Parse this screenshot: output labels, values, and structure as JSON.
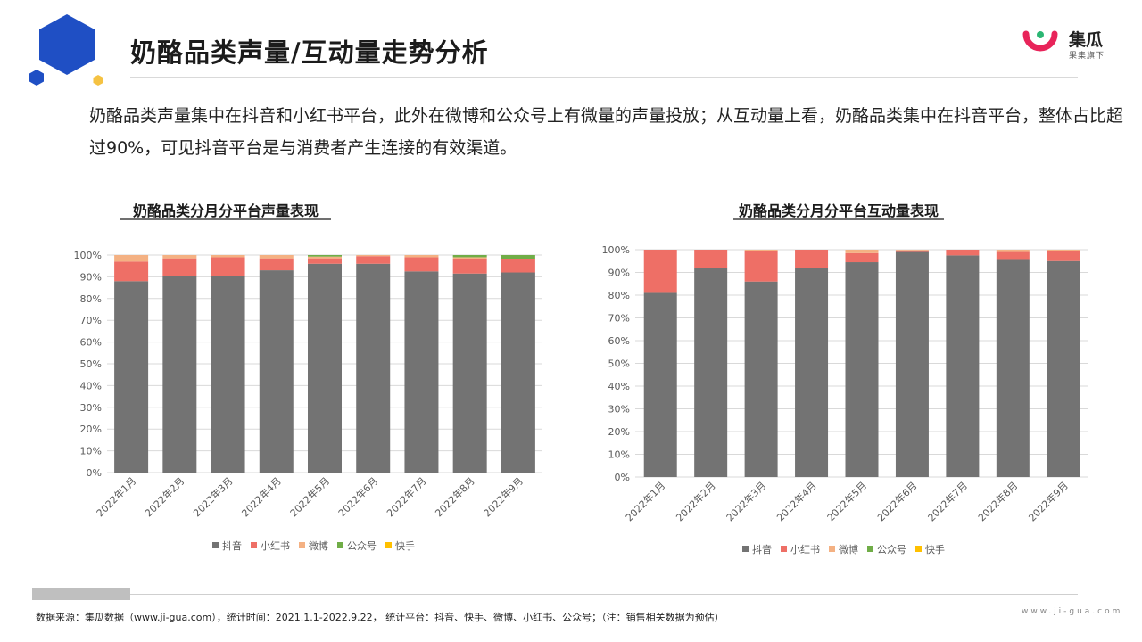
{
  "header": {
    "title": "奶酪品类声量/互动量走势分析",
    "logo_name": "集瓜",
    "logo_sub": "果集旗下"
  },
  "description": "奶酪品类声量集中在抖音和小红书平台，此外在微博和公众号上有微量的声量投放；从互动量上看，奶酪品类集中在抖音平台，整体占比超过90%，可见抖音平台是与消费者产生连接的有效渠道。",
  "colors": {
    "douyin": "#737373",
    "xiaohongshu": "#ee6f66",
    "weibo": "#f4b183",
    "gongzhonghao": "#70ad47",
    "kuaishou": "#ffc000",
    "hex_blue": "#1f4fc4"
  },
  "chart_data": [
    {
      "type": "bar",
      "stacked": true,
      "title": "奶酪品类分月分平台声量表现",
      "categories": [
        "2022年1月",
        "2022年2月",
        "2022年3月",
        "2022年4月",
        "2022年5月",
        "2022年6月",
        "2022年7月",
        "2022年8月",
        "2022年9月"
      ],
      "ylim": [
        0,
        100
      ],
      "yticks": [
        "0%",
        "10%",
        "20%",
        "30%",
        "40%",
        "50%",
        "60%",
        "70%",
        "80%",
        "90%",
        "100%"
      ],
      "grid": true,
      "legend_position": "bottom",
      "series": [
        {
          "name": "抖音",
          "color": "#737373",
          "values": [
            88,
            90.5,
            90.5,
            93,
            96,
            96,
            92.5,
            91.5,
            92
          ]
        },
        {
          "name": "小红书",
          "color": "#ee6f66",
          "values": [
            9,
            8,
            8.5,
            5.5,
            2.5,
            3.5,
            6.5,
            6.5,
            6
          ]
        },
        {
          "name": "微博",
          "color": "#f4b183",
          "values": [
            3,
            1.5,
            1,
            1.5,
            0.8,
            0.5,
            1,
            1,
            0
          ]
        },
        {
          "name": "公众号",
          "color": "#70ad47",
          "values": [
            0,
            0,
            0,
            0,
            0.7,
            0,
            0,
            1,
            2
          ]
        },
        {
          "name": "快手",
          "color": "#ffc000",
          "values": [
            0,
            0,
            0,
            0,
            0,
            0,
            0,
            0,
            0
          ]
        }
      ]
    },
    {
      "type": "bar",
      "stacked": true,
      "title": "奶酪品类分月分平台互动量表现",
      "categories": [
        "2022年1月",
        "2022年2月",
        "2022年3月",
        "2022年4月",
        "2022年5月",
        "2022年6月",
        "2022年7月",
        "2022年8月",
        "2022年9月"
      ],
      "ylim": [
        0,
        100
      ],
      "yticks": [
        "0%",
        "10%",
        "20%",
        "30%",
        "40%",
        "50%",
        "60%",
        "70%",
        "80%",
        "90%",
        "100%"
      ],
      "grid": true,
      "legend_position": "bottom",
      "series": [
        {
          "name": "抖音",
          "color": "#737373",
          "values": [
            81,
            92,
            86,
            92,
            94.5,
            99,
            97.5,
            95.5,
            95
          ]
        },
        {
          "name": "小红书",
          "color": "#ee6f66",
          "values": [
            19,
            8,
            13.5,
            8,
            4,
            0.7,
            2.5,
            3.5,
            4.5
          ]
        },
        {
          "name": "微博",
          "color": "#f4b183",
          "values": [
            0,
            0,
            0.5,
            0,
            1.5,
            0.3,
            0,
            1,
            0.5
          ]
        },
        {
          "name": "公众号",
          "color": "#70ad47",
          "values": [
            0,
            0,
            0,
            0,
            0,
            0,
            0,
            0,
            0
          ]
        },
        {
          "name": "快手",
          "color": "#ffc000",
          "values": [
            0,
            0,
            0,
            0,
            0,
            0,
            0,
            0,
            0
          ]
        }
      ]
    }
  ],
  "footer": {
    "source": "数据来源：集瓜数据（www.ji-gua.com），统计时间：2021.1.1-2022.9.22， 统计平台：抖音、快手、微博、小红书、公众号；（注：销售相关数据为预估）",
    "site": "www.ji-gua.com"
  }
}
